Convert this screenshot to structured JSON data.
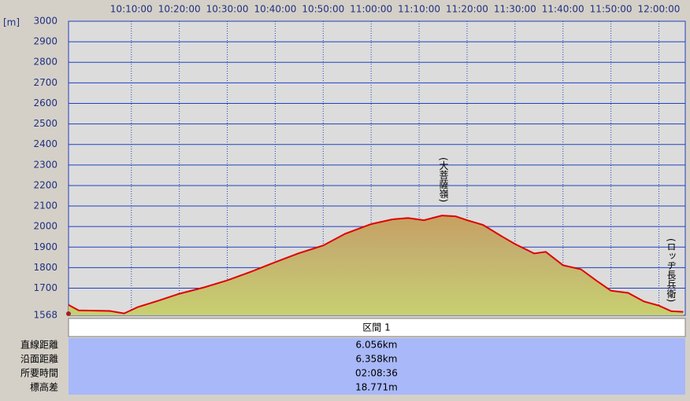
{
  "chart_data": {
    "type": "area",
    "y_label": "[m]",
    "x": [
      "09:56:54",
      "09:59:00",
      "10:05:30",
      "10:08:30",
      "10:11:20",
      "10:15:30",
      "10:20:00",
      "10:25:10",
      "10:30:00",
      "10:35:00",
      "10:40:00",
      "10:44:45",
      "10:50:00",
      "10:54:35",
      "11:00:00",
      "11:04:25",
      "11:07:40",
      "11:11:00",
      "11:14:45",
      "11:17:35",
      "11:20:00",
      "11:23:20",
      "11:27:25",
      "11:30:00",
      "11:34:00",
      "11:36:25",
      "11:40:00",
      "11:43:45",
      "11:47:05",
      "11:50:00",
      "11:53:35",
      "11:56:55",
      "12:00:00",
      "12:02:35",
      "12:05:05"
    ],
    "values": [
      1619,
      1592,
      1589,
      1577,
      1608,
      1638,
      1673,
      1704,
      1738,
      1781,
      1827,
      1869,
      1908,
      1965,
      2012,
      2035,
      2042,
      2031,
      2054,
      2050,
      2031,
      2008,
      1950,
      1915,
      1869,
      1877,
      1812,
      1792,
      1735,
      1688,
      1677,
      1635,
      1615,
      1588,
      1585
    ],
    "color": "#e00000",
    "xlim": [
      "09:56:54",
      "12:05:30"
    ],
    "xticks": [
      "10:10:00",
      "10:20:00",
      "10:30:00",
      "10:40:00",
      "10:50:00",
      "11:00:00",
      "11:10:00",
      "11:20:00",
      "11:30:00",
      "11:40:00",
      "11:50:00",
      "12:00:00"
    ],
    "ylim": [
      1568,
      3000
    ],
    "yticks": [
      1568,
      1700,
      1800,
      1900,
      2000,
      2100,
      2200,
      2300,
      2400,
      2500,
      2600,
      2700,
      2800,
      2900,
      3000
    ],
    "grid": true,
    "annotations": [
      "(大菩薩嶺)",
      "(ロッヂ長兵衛)"
    ]
  },
  "table": {
    "header": "区間 1",
    "rows": [
      [
        "直線距離",
        "6.056km"
      ],
      [
        "沿面距離",
        "6.358km"
      ],
      [
        "所要時間",
        "02:08:36"
      ],
      [
        "標高差",
        "18.771m"
      ]
    ]
  }
}
